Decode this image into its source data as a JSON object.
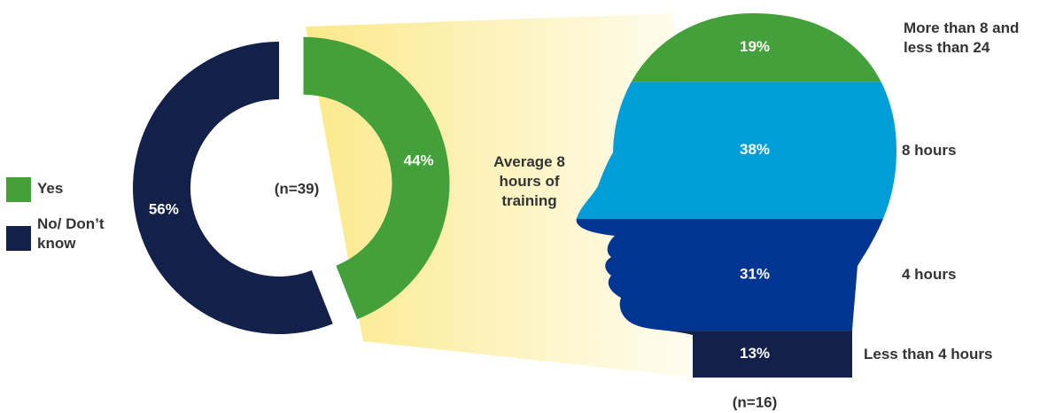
{
  "chart_data": [
    {
      "type": "donut",
      "categories": [
        "Yes",
        "No/ Don’t know"
      ],
      "values": [
        44,
        56
      ],
      "value_labels": [
        "44%",
        "56%"
      ],
      "colors": [
        "#43a03a",
        "#13214a"
      ],
      "center_label": "(n=39)"
    },
    {
      "type": "head",
      "title": "Average 8 hours of training",
      "categories": [
        "More than 8 and less than 24",
        "8 hours",
        "4 hours",
        "Less than 4 hours"
      ],
      "values": [
        19,
        38,
        31,
        13
      ],
      "value_labels": [
        "19%",
        "38%",
        "31%",
        "13%"
      ],
      "colors": [
        "#43a03a",
        "#009ed8",
        "#003594",
        "#13214a"
      ],
      "sample_label": "(n=16)"
    }
  ]
}
